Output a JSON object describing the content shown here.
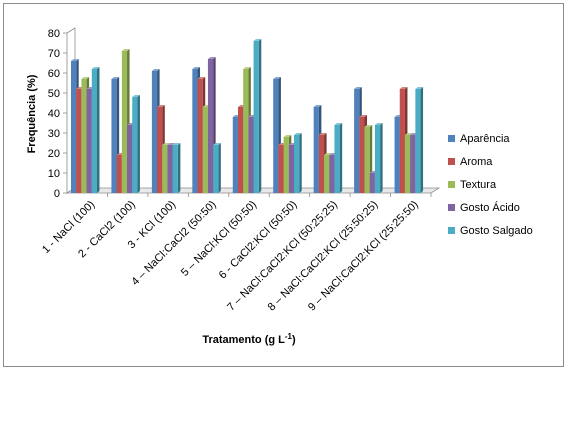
{
  "chart_data": {
    "type": "bar",
    "style": "3d-clustered-column",
    "xlabel": "Tratamento (g L",
    "xlabel_sup": "-1",
    "xlabel_end": ")",
    "ylabel": "Frequência (%)",
    "ylim": [
      0,
      80
    ],
    "yticks": [
      0,
      10,
      20,
      30,
      40,
      50,
      60,
      70,
      80
    ],
    "grid": false,
    "legend_position": "right",
    "categories": [
      "1 - NaCl (100)",
      "2 - CaCl2 (100)",
      "3 - KCl (100)",
      "4 – NaCl:CaCl2 (50:50)",
      "5 – NaCl:KCl (50:50)",
      "6 - CaCl2:KCl (50:50)",
      "7 – NaCl:CaCl2:KCl (50:25:25)",
      "8 – NaCl:CaCl2:KCl (25:50:25)",
      "9 – NaCl:CaCl2:KCl (25:25:50)"
    ],
    "series": [
      {
        "name": "Aparência",
        "color": "#4f81bd",
        "values": [
          66,
          57,
          61,
          62,
          38,
          57,
          43,
          52,
          38
        ]
      },
      {
        "name": "Aroma",
        "color": "#c0504d",
        "values": [
          52,
          19,
          43,
          57,
          43,
          24,
          29,
          38,
          52
        ]
      },
      {
        "name": "Textura",
        "color": "#9bbb59",
        "values": [
          57,
          71,
          24,
          43,
          62,
          28,
          19,
          33,
          29
        ]
      },
      {
        "name": "Gosto Ácido",
        "color": "#8064a2",
        "values": [
          52,
          34,
          24,
          67,
          38,
          24,
          19,
          10,
          29
        ]
      },
      {
        "name": "Gosto Salgado",
        "color": "#4bacc6",
        "values": [
          62,
          48,
          24,
          24,
          76,
          29,
          34,
          34,
          52
        ]
      }
    ]
  }
}
